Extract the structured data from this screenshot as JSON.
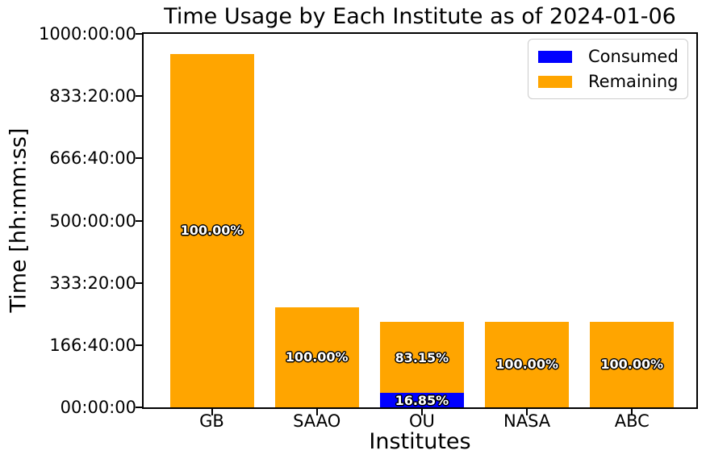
{
  "chart_data": {
    "type": "bar",
    "stacked": true,
    "title": "Time Usage by Each Institute as of 2024-01-06",
    "xlabel": "Institutes",
    "ylabel": "Time [hh:mm:ss]",
    "categories": [
      "GB",
      "SAAO",
      "OU",
      "NASA",
      "ABC"
    ],
    "unit": "hours",
    "ylim": [
      0,
      1000
    ],
    "yticks": {
      "values": [
        0,
        166.6667,
        333.3333,
        500,
        666.6667,
        833.3333,
        1000
      ],
      "labels": [
        "00:00:00",
        "166:40:00",
        "333:20:00",
        "500:00:00",
        "666:40:00",
        "833:20:00",
        "1000:00:00"
      ]
    },
    "series": [
      {
        "name": "Consumed",
        "color": "#0000ff",
        "values": [
          0,
          0,
          38.6,
          0,
          0
        ],
        "labels": [
          "",
          "",
          "16.85%",
          "",
          ""
        ]
      },
      {
        "name": "Remaining",
        "color": "#ffa500",
        "values": [
          947,
          268,
          190.4,
          229,
          229
        ],
        "labels": [
          "100.00%",
          "100.00%",
          "83.15%",
          "100.00%",
          "100.00%"
        ]
      }
    ],
    "legend": {
      "position": "upper right",
      "entries": [
        "Consumed",
        "Remaining"
      ]
    },
    "grid": false,
    "colors": {
      "consumed": "#0000ff",
      "remaining": "#ffa500",
      "text": "#000000",
      "bar_label_text": "#ffffff",
      "legend_border": "#cccccc",
      "background": "#ffffff"
    }
  }
}
